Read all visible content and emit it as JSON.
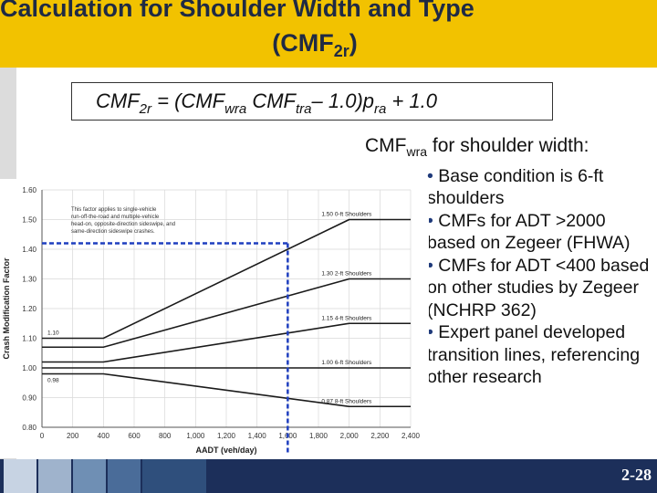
{
  "title": {
    "line1": "Calculation for Shoulder Width and Type",
    "line2_main": "(CMF",
    "line2_sub": "2r",
    "line2_end": ")"
  },
  "formula": {
    "p1": "CMF",
    "s1": "2r",
    "p2": " = (CMF",
    "s2": "wra",
    "p3": " CMF",
    "s3": "tra",
    "p4": "– 1.0)p",
    "s4": "ra",
    "p5": " + 1.0"
  },
  "bullets": {
    "heading_main": "CMF",
    "heading_sub": "wra",
    "heading_end": " for shoulder width:",
    "bullet_char": "•",
    "items": [
      "Base condition is 6-ft shoulders",
      "CMFs for ADT >2000 based on Zegeer (FHWA)",
      "CMFs for ADT <400 based on other studies by Zegeer (NCHRP 362)",
      "Expert panel developed transition lines, referencing other research"
    ]
  },
  "chart_data": {
    "type": "line",
    "xlabel": "AADT (veh/day)",
    "ylabel": "Crash Modification Factor",
    "x_ticks": [
      "0",
      "200",
      "400",
      "600",
      "800",
      "1,000",
      "1,200",
      "1,400",
      "1,600",
      "1,800",
      "2,000",
      "2,200",
      "2,400"
    ],
    "y_ticks": [
      "0.80",
      "0.90",
      "1.00",
      "1.10",
      "1.20",
      "1.30",
      "1.40",
      "1.50",
      "1.60"
    ],
    "xlim": [
      0,
      2400
    ],
    "ylim": [
      0.8,
      1.6
    ],
    "grid": true,
    "note": "This factor applies to single-vehicle run-off-the-road and multiple-vehicle head-on, opposite-direction sideswipe, and same-direction sideswipe crashes.",
    "series": [
      {
        "name": "0-ft Shoulders",
        "label": "1.50  0-ft Shoulders",
        "x": [
          0,
          400,
          2000,
          2400
        ],
        "y": [
          1.1,
          1.1,
          1.5,
          1.5
        ]
      },
      {
        "name": "2-ft Shoulders",
        "label": "1.30  2-ft Shoulders",
        "x": [
          0,
          400,
          2000,
          2400
        ],
        "y": [
          1.07,
          1.07,
          1.3,
          1.3
        ]
      },
      {
        "name": "4-ft Shoulders",
        "label": "1.15  4-ft Shoulders",
        "x": [
          0,
          400,
          2000,
          2400
        ],
        "y": [
          1.02,
          1.02,
          1.15,
          1.15
        ]
      },
      {
        "name": "6-ft Shoulders",
        "label": "1.00  6-ft Shoulders",
        "x": [
          0,
          400,
          2000,
          2400
        ],
        "y": [
          1.0,
          1.0,
          1.0,
          1.0
        ]
      },
      {
        "name": "8-ft Shoulders",
        "label": "0.87  8-ft Shoulders",
        "x": [
          0,
          400,
          2000,
          2400
        ],
        "y": [
          0.98,
          0.98,
          0.87,
          0.87
        ]
      }
    ],
    "left_labels": [
      "1.10",
      "0.98"
    ],
    "highlight": {
      "x": 1600,
      "y": 1.42,
      "color": "#1f3fbf"
    }
  },
  "footer": {
    "page_number": "2-28",
    "colors": [
      "#c7d3e3",
      "#9fb3cc",
      "#6f8fb4",
      "#4a6c99",
      "#2f4f7c",
      "#1c2f5a"
    ]
  }
}
